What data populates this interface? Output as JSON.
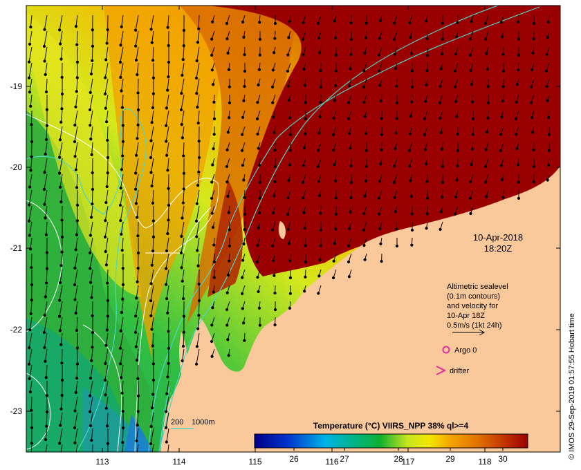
{
  "map": {
    "date_line1": "10-Apr-2018",
    "date_line2": "18:20Z",
    "alti_lines": [
      "Altimetric sealevel",
      "(0.1m contours)",
      "and velocity for",
      "10-Apr 18Z",
      "0.5m/s (1kt 24h)"
    ],
    "argo_label": "Argo 0",
    "drifter_label": "drifter",
    "depth_label_a": "200",
    "depth_label_b": "1000m",
    "colorbar_title": "Temperature (°C) VIIRS_NPP 38% ql>=4",
    "colorbar_ticks": [
      "26",
      "27",
      "28",
      "29",
      "30"
    ],
    "credit": "© IMOS 29-Sep-2019 01:57:55 Hobart time",
    "x_ticks": [
      "113",
      "114",
      "115",
      "116",
      "117",
      "118"
    ],
    "y_ticks": [
      "-19",
      "-20",
      "-21",
      "-22",
      "-23"
    ],
    "colors": {
      "land": "#f9c89b",
      "warm": "#9b0000",
      "shelf_contour": "#4fd6c8",
      "sla_contour": "#ffffff",
      "argo": "#e0309a",
      "drifter": "#e0309a"
    }
  }
}
